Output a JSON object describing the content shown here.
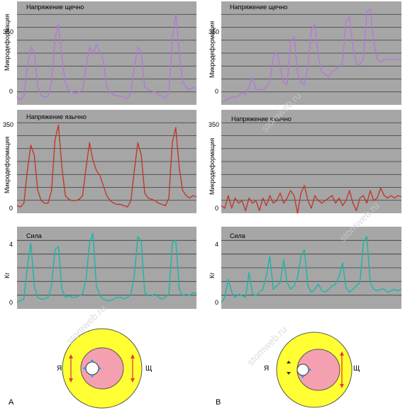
{
  "colors": {
    "background": "#ffffff",
    "plot_background": "#a6a6a6",
    "gridline": "#3a3a3a",
    "purple": "#b478d8",
    "red": "#c0392b",
    "teal": "#19b6a8",
    "outer_ring": "#ffff33",
    "inner_oval": "#f4a0b0",
    "arrow": "#d94040",
    "marker": "#3399dd"
  },
  "panels": [
    {
      "id": "A1",
      "title": "Напряжение щечно",
      "ylabel": "Микродеформация",
      "ticks": [
        "350",
        "0"
      ]
    },
    {
      "id": "A2",
      "title": "Напряжение язычно",
      "ylabel": "Микродеформация",
      "ticks": [
        "350",
        "0"
      ]
    },
    {
      "id": "A3",
      "title": "Сила",
      "ylabel": "Кг",
      "ticks": [
        "4",
        "0"
      ]
    },
    {
      "id": "B1",
      "title": "Напряжение щечно",
      "ylabel": "Микродеформация",
      "ticks": [
        "350",
        "0"
      ]
    },
    {
      "id": "B2",
      "title": "Напряжение язычно",
      "ylabel": "Микродеформация",
      "ticks": [
        "350",
        "0"
      ]
    },
    {
      "id": "B3",
      "title": "Сила",
      "ylabel": "Кг",
      "ticks": [
        "4",
        "0"
      ]
    }
  ],
  "diagram": {
    "left_side_label": "Я",
    "right_side_label": "Щ"
  },
  "letters": {
    "A": "А",
    "B": "В"
  },
  "watermark": "stomweb.ru",
  "chart_data": [
    {
      "type": "line",
      "id": "A1",
      "ylim": [
        -30,
        380
      ],
      "color_key": "purple",
      "series": [
        {
          "values": [
            0,
            -10,
            5,
            120,
            200,
            180,
            40,
            10,
            0,
            5,
            60,
            230,
            290,
            160,
            60,
            25,
            20,
            15,
            20,
            30,
            120,
            200,
            170,
            210,
            180,
            150,
            40,
            20,
            10,
            5,
            5,
            0,
            -5,
            20,
            120,
            200,
            180,
            40,
            30,
            25,
            20,
            10,
            5,
            -5,
            20,
            230,
            330,
            180,
            60,
            40,
            30,
            40,
            35
          ]
        }
      ]
    },
    {
      "type": "line",
      "id": "A2",
      "ylim": [
        -30,
        380
      ],
      "color_key": "red",
      "series": [
        {
          "values": [
            0,
            -5,
            10,
            140,
            240,
            200,
            60,
            20,
            10,
            10,
            60,
            260,
            320,
            150,
            40,
            25,
            20,
            20,
            25,
            40,
            150,
            250,
            180,
            140,
            120,
            80,
            40,
            20,
            10,
            5,
            5,
            0,
            -5,
            20,
            140,
            250,
            200,
            50,
            30,
            25,
            20,
            10,
            5,
            0,
            30,
            250,
            310,
            150,
            60,
            40,
            30,
            40,
            35
          ]
        }
      ]
    },
    {
      "type": "line",
      "id": "A3",
      "ylim": [
        -0.4,
        4.6
      ],
      "color_key": "teal",
      "series": [
        {
          "values": [
            0,
            0.1,
            0.2,
            2.2,
            3.6,
            1.0,
            0.3,
            0.2,
            0.2,
            0.3,
            1.0,
            3.2,
            3.4,
            0.8,
            0.3,
            0.4,
            0.3,
            0.3,
            0.4,
            0.5,
            1.4,
            3.6,
            4.2,
            1.0,
            0.4,
            0.2,
            0.1,
            0.1,
            0.2,
            0.3,
            0.3,
            0.2,
            0.3,
            0.5,
            1.6,
            4.0,
            3.7,
            0.6,
            0.4,
            0.4,
            0.5,
            0.3,
            0.2,
            0.3,
            0.5,
            3.6,
            3.8,
            0.8,
            0.4,
            0.5,
            0.4,
            0.6,
            0.5
          ]
        }
      ]
    },
    {
      "type": "line",
      "id": "B1",
      "ylim": [
        -30,
        380
      ],
      "color_key": "purple",
      "series": [
        {
          "values": [
            -20,
            -15,
            -5,
            0,
            0,
            5,
            20,
            10,
            40,
            80,
            30,
            30,
            30,
            40,
            60,
            160,
            180,
            120,
            60,
            50,
            220,
            240,
            100,
            60,
            50,
            120,
            270,
            290,
            160,
            100,
            90,
            80,
            100,
            110,
            120,
            140,
            300,
            320,
            200,
            130,
            130,
            150,
            340,
            350,
            220,
            150,
            140,
            150,
            150,
            150,
            150,
            150,
            150
          ]
        }
      ]
    },
    {
      "type": "line",
      "id": "B2",
      "ylim": [
        -30,
        380
      ],
      "color_key": "red",
      "series": [
        {
          "values": [
            0,
            -10,
            40,
            -10,
            30,
            10,
            20,
            -20,
            30,
            10,
            20,
            -20,
            30,
            0,
            40,
            10,
            20,
            50,
            10,
            30,
            60,
            40,
            -30,
            50,
            80,
            20,
            -10,
            40,
            20,
            10,
            20,
            30,
            40,
            10,
            30,
            0,
            20,
            60,
            10,
            -20,
            30,
            40,
            10,
            60,
            20,
            30,
            70,
            40,
            30,
            40,
            30,
            40,
            35
          ]
        }
      ]
    },
    {
      "type": "line",
      "id": "B3",
      "ylim": [
        -0.4,
        4.6
      ],
      "color_key": "teal",
      "series": [
        {
          "values": [
            0,
            0.3,
            1.4,
            0.6,
            0.3,
            0.5,
            0.4,
            0.3,
            1.8,
            0.5,
            0.4,
            0.6,
            0.8,
            1.6,
            2.8,
            0.8,
            1.0,
            1.2,
            2.6,
            1.2,
            0.8,
            1.0,
            1.5,
            2.8,
            3.2,
            1.0,
            0.6,
            0.8,
            1.1,
            0.7,
            0.6,
            0.8,
            1.0,
            1.1,
            1.6,
            2.4,
            0.9,
            0.6,
            0.8,
            1.0,
            1.2,
            3.6,
            4.0,
            1.2,
            0.8,
            0.7,
            0.8,
            0.8,
            0.6,
            0.7,
            0.8,
            0.7,
            0.8
          ]
        }
      ]
    }
  ]
}
